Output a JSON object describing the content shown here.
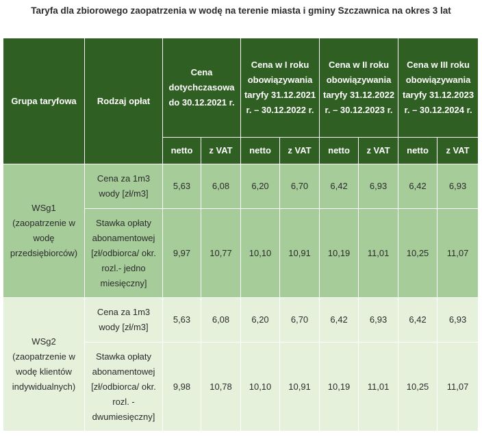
{
  "title": "Taryfa dla zbiorowego zaopatrzenia w wodę na terenie miasta i gminy Szczawnica na okres 3 lat",
  "headers": {
    "group": "Grupa taryfowa",
    "fee_type": "Rodzaj opłat",
    "periods": [
      "Cena dotychczasowa do 30.12.2021 r.",
      "Cena w I roku obowiązywania taryfy 31.12.2021 r. – 30.12.2022 r.",
      "Cena w II roku obowiązywania taryfy 31.12.2022 r. – 30.12.2023 r.",
      "Cena w III roku obowiązywania taryfy 31.12.2023 r. – 30.12.2024 r."
    ],
    "netto": "netto",
    "vat": "z VAT"
  },
  "groups": [
    {
      "name": "WSg1 (zaopatrzenie w wodę przedsiębiorców)",
      "rows": [
        {
          "fee": "Cena za 1m3 wody [zł/m3]",
          "values": [
            "5,63",
            "6,08",
            "6,20",
            "6,70",
            "6,42",
            "6,93",
            "6,42",
            "6,93"
          ]
        },
        {
          "fee": "Stawka opłaty abonamentowej [zł/odbiorca/ okr. rozl.- jedno miesięczny]",
          "values": [
            "9,97",
            "10,77",
            "10,10",
            "10,91",
            "10,19",
            "11,01",
            "10,25",
            "11,07"
          ]
        }
      ]
    },
    {
      "name": "WSg2 (zaopatrzenie w wodę klientów indywidualnych)",
      "rows": [
        {
          "fee": "Cena za 1m3 wody [zł/m3]",
          "values": [
            "5,63",
            "6,08",
            "6,20",
            "6,70",
            "6,42",
            "6,93",
            "6,42",
            "6,93"
          ]
        },
        {
          "fee": "Stawka opłaty abonamentowej [zł/odbiorca/ okr. rozl. - dwumiesięczny]",
          "values": [
            "9,98",
            "10,78",
            "10,10",
            "10,91",
            "10,19",
            "11,01",
            "10,25",
            "11,07"
          ]
        }
      ]
    }
  ]
}
